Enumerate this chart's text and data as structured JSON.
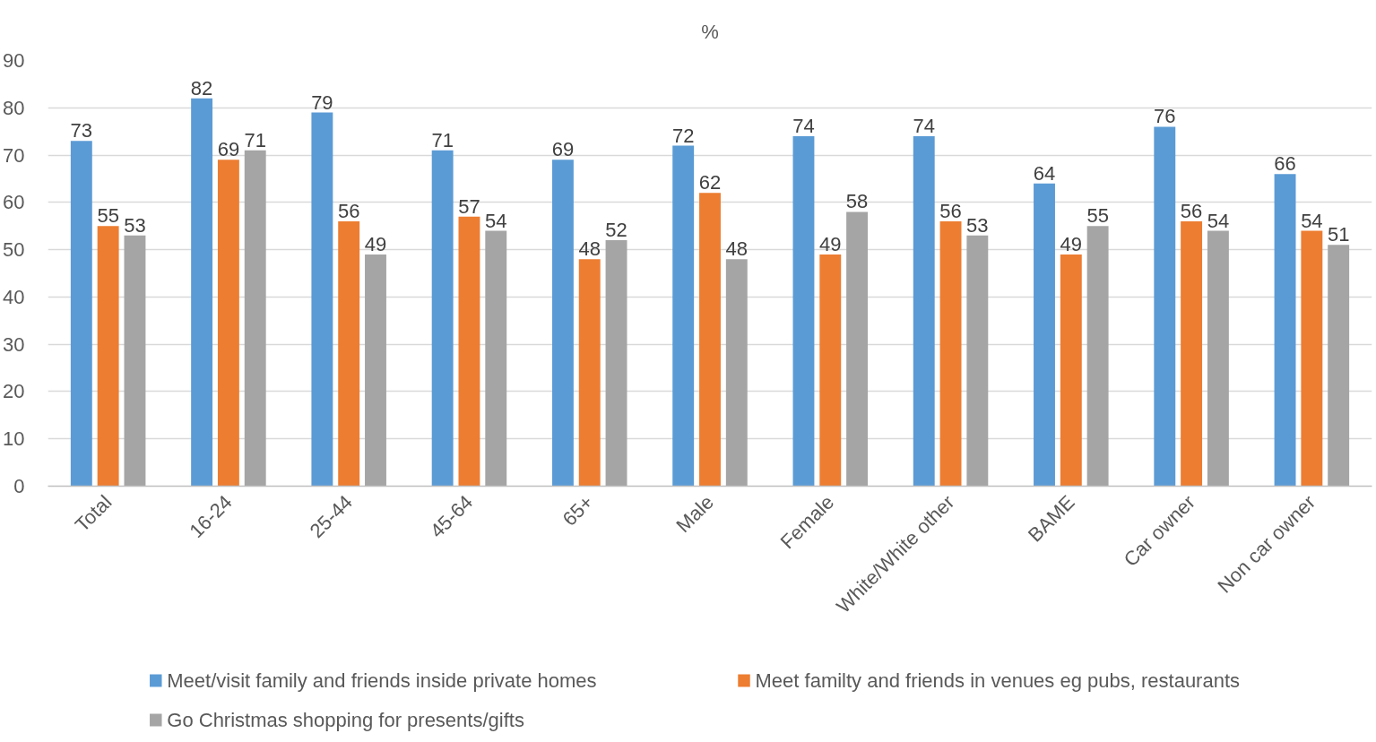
{
  "chart_data": {
    "type": "bar",
    "title": "%",
    "categories": [
      "Total",
      "16-24",
      "25-44",
      "45-64",
      "65+",
      "Male",
      "Female",
      "White/White other",
      "BAME",
      "Car owner",
      "Non car owner"
    ],
    "series": [
      {
        "name": "Meet/visit family and friends inside private homes",
        "color": "#5b9bd5",
        "values": [
          73,
          82,
          79,
          71,
          69,
          72,
          74,
          74,
          64,
          76,
          66
        ]
      },
      {
        "name": "Meet familty and friends in venues eg pubs, restaurants",
        "color": "#ed7d31",
        "values": [
          55,
          69,
          56,
          57,
          48,
          62,
          49,
          56,
          49,
          56,
          54
        ]
      },
      {
        "name": "Go Christmas shopping for presents/gifts",
        "color": "#a5a5a5",
        "values": [
          53,
          71,
          49,
          54,
          52,
          48,
          58,
          53,
          55,
          54,
          51
        ]
      }
    ],
    "ylim": [
      0,
      90
    ],
    "yticks": [
      0,
      10,
      20,
      30,
      40,
      50,
      60,
      70,
      80,
      90
    ],
    "grid": "y",
    "legend": "bottom",
    "data_labels": true
  }
}
